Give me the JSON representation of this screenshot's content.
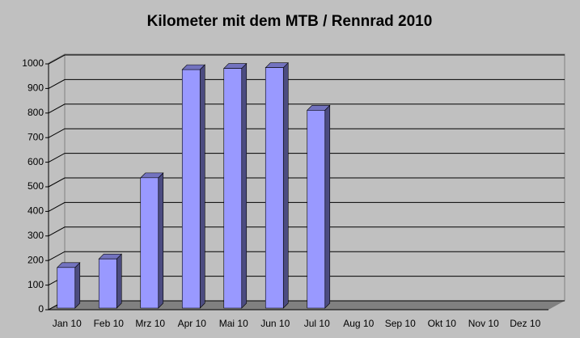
{
  "chart_data": {
    "type": "bar3d",
    "title": "Kilometer mit dem MTB / Rennrad 2010",
    "categories": [
      "Jan 10",
      "Feb 10",
      "Mrz 10",
      "Apr 10",
      "Mai 10",
      "Jun 10",
      "Jul 10",
      "Aug 10",
      "Sep 10",
      "Okt 10",
      "Nov 10",
      "Dez 10"
    ],
    "values": [
      165,
      200,
      530,
      970,
      975,
      978,
      805,
      null,
      null,
      null,
      null,
      null
    ],
    "color": "#9999ff",
    "ylim": [
      0,
      1000
    ],
    "yticks": [
      0,
      100,
      200,
      300,
      400,
      500,
      600,
      700,
      800,
      900,
      1000
    ],
    "grid": true
  }
}
